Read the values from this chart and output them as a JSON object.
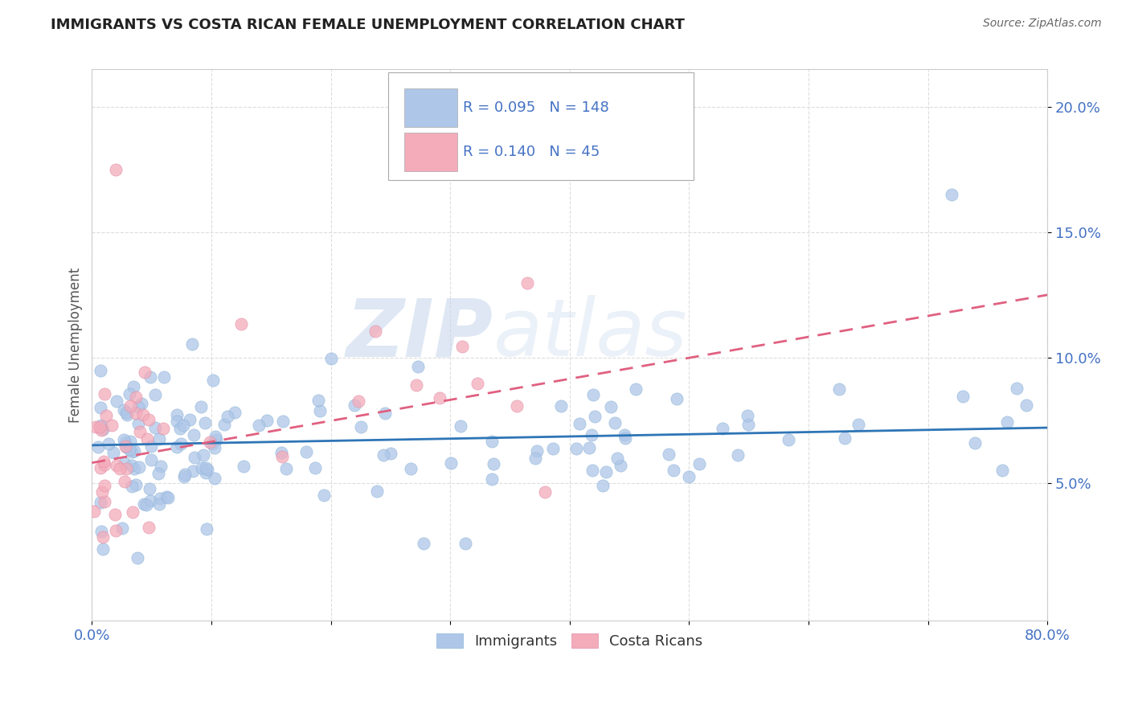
{
  "title": "IMMIGRANTS VS COSTA RICAN FEMALE UNEMPLOYMENT CORRELATION CHART",
  "source_text": "Source: ZipAtlas.com",
  "ylabel": "Female Unemployment",
  "watermark_zip": "ZIP",
  "watermark_atlas": "atlas",
  "legend_immigrants": "Immigrants",
  "legend_costa_ricans": "Costa Ricans",
  "R_immigrants": 0.095,
  "N_immigrants": 148,
  "R_costa_ricans": 0.14,
  "N_costa_ricans": 45,
  "xlim": [
    0.0,
    0.8
  ],
  "ylim": [
    -0.005,
    0.215
  ],
  "xtick_positions": [
    0.0,
    0.1,
    0.2,
    0.3,
    0.4,
    0.5,
    0.6,
    0.7,
    0.8
  ],
  "xtick_labels": [
    "0.0%",
    "",
    "",
    "",
    "",
    "",
    "",
    "",
    "80.0%"
  ],
  "ytick_values": [
    0.05,
    0.1,
    0.15,
    0.2
  ],
  "ytick_labels": [
    "5.0%",
    "10.0%",
    "15.0%",
    "20.0%"
  ],
  "color_immigrants": "#AEC6E8",
  "color_costa_ricans": "#F4ABBA",
  "color_line_immigrants": "#2E75B6",
  "color_line_costa_ricans": "#E06080",
  "background_color": "#FFFFFF",
  "grid_color": "#DDDDDD",
  "imm_line_y0": 0.065,
  "imm_line_y1": 0.072,
  "cr_line_y0": 0.058,
  "cr_line_y1": 0.125
}
